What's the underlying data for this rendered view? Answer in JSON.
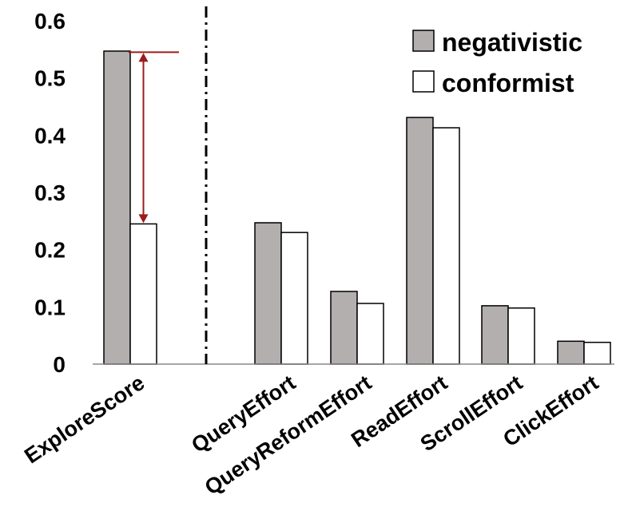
{
  "chart_data": {
    "type": "bar",
    "title": "",
    "xlabel": "",
    "ylabel": "",
    "ylim": [
      0,
      0.6
    ],
    "y_ticks": [
      "0",
      "0.1",
      "0.2",
      "0.3",
      "0.4",
      "0.5",
      "0.6"
    ],
    "categories": [
      "ExploreScore",
      "QueryEffort",
      "QueryReformEffort",
      "ReadEffort",
      "ScrollEffort",
      "ClickEffort"
    ],
    "series": [
      {
        "name": "negativistic",
        "color": "#b3afae",
        "values": [
          0.547,
          0.247,
          0.127,
          0.431,
          0.102,
          0.04
        ]
      },
      {
        "name": "conformist",
        "color": "#ffffff",
        "values": [
          0.245,
          0.23,
          0.106,
          0.413,
          0.098,
          0.038
        ]
      }
    ],
    "legend_position": "top-right",
    "separator_after_category": "ExploreScore",
    "annotation": {
      "type": "double-arrow",
      "category": "ExploreScore",
      "from": 0.545,
      "to": 0.245,
      "color": "#9b1c1c"
    },
    "grid": false
  }
}
